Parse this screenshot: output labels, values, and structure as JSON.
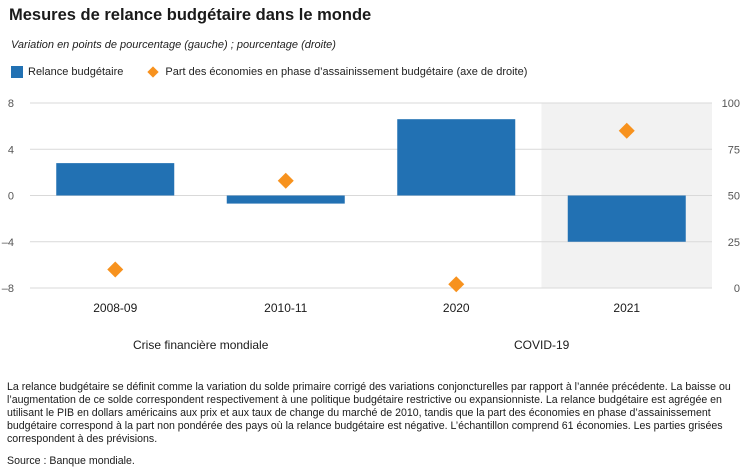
{
  "title": "Mesures de relance budgétaire dans le monde",
  "subtitle": "Variation en points de pourcentage (gauche) ; pourcentage (droite)",
  "colors": {
    "bar": "#2271b3",
    "diamond": "#f7921e",
    "shade": "#f2f2f2",
    "grid": "#d9d9d9"
  },
  "chart_data": {
    "type": "bar",
    "categories": [
      "2008-09",
      "2010-11",
      "2020",
      "2021"
    ],
    "series": [
      {
        "name": "Relance budgétaire",
        "type": "bar",
        "axis": "left",
        "values": [
          2.8,
          -0.7,
          6.6,
          -4.0
        ]
      },
      {
        "name": "Part des économies en phase d’assainissement budgétaire (axe de droite)",
        "type": "scatter",
        "marker": "diamond",
        "axis": "right",
        "values": [
          10,
          58,
          2,
          85
        ]
      }
    ],
    "ylim": [
      -8,
      8
    ],
    "yticks": [
      8,
      4,
      0,
      -4,
      -8
    ],
    "ytick_labels": [
      "8",
      "4",
      "0",
      "–4",
      "–8"
    ],
    "y2lim": [
      0,
      100
    ],
    "y2ticks": [
      100,
      75,
      50,
      25,
      0
    ],
    "y2tick_labels": [
      "100",
      "75",
      "50",
      "25",
      "0"
    ],
    "shaded_categories": [
      "2021"
    ],
    "grid": true,
    "legend": "top-left",
    "groups": [
      {
        "label": "Crise financière mondiale",
        "categories": [
          "2008-09",
          "2010-11"
        ]
      },
      {
        "label": "COVID-19",
        "categories": [
          "2020",
          "2021"
        ]
      }
    ]
  },
  "note": "La relance budgétaire se définit comme la variation du solde primaire corrigé des variations conjoncturelles par rapport à l’année précédente. La baisse ou l’augmentation de ce solde correspondent respectivement à une politique budgétaire restrictive ou expansionniste. La relance budgétaire est agrégée en utilisant le PIB en dollars américains aux prix et aux taux de change du marché de 2010, tandis que la part des économies en phase d’assainissement budgétaire correspond à la part non pondérée des pays où la relance budgétaire est négative. L’échantillon comprend 61 économies. Les parties grisées correspondent à des prévisions.",
  "source": "Source : Banque mondiale."
}
